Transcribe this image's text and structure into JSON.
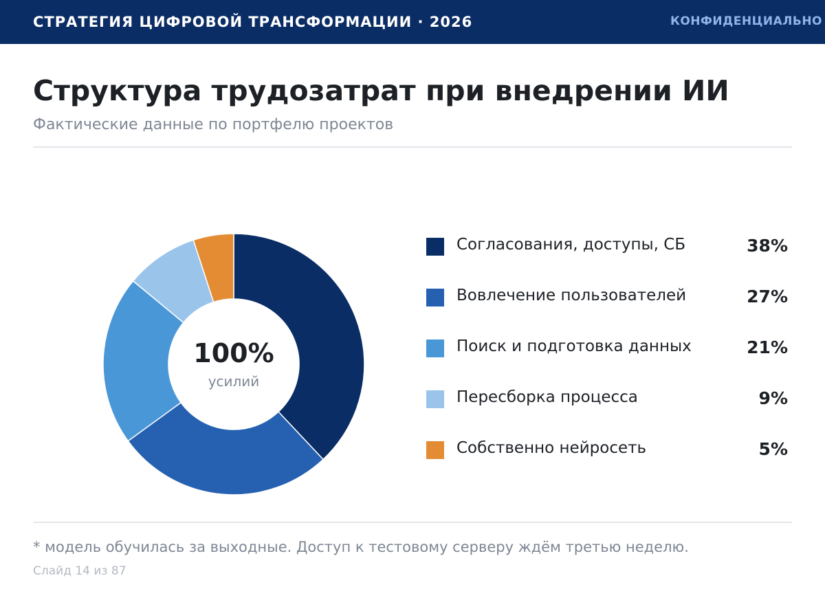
{
  "header": {
    "brand": "СТРАТЕГИЯ ЦИФРОВОЙ ТРАНСФОРМАЦИИ · 2026",
    "confidential": "КОНФИДЕНЦИАЛЬНО"
  },
  "slide": {
    "title": "Структура трудозатрат при внедрении ИИ",
    "subtitle": "Фактические данные по портфелю проектов",
    "footnote": "* модель обучилась за выходные. Доступ к тестовому серверу ждём третью неделю.",
    "slide_number": "Слайд 14 из 87"
  },
  "colors": {
    "header_bg": "#0b2d65",
    "accent_light": "#8fb5ea"
  },
  "chart_data": {
    "type": "pie",
    "variant": "donut",
    "center_value": "100%",
    "center_label": "усилий",
    "legend_position": "right",
    "slices": [
      {
        "label": "Согласования, доступы, СБ",
        "value": 38,
        "display": "38%",
        "color": "#0b2d65"
      },
      {
        "label": "Вовлечение пользователей",
        "value": 27,
        "display": "27%",
        "color": "#2661b1"
      },
      {
        "label": "Поиск и подготовка данных",
        "value": 21,
        "display": "21%",
        "color": "#4a97d8"
      },
      {
        "label": "Пересборка процесса",
        "value": 9,
        "display": "9%",
        "color": "#9ac4ea"
      },
      {
        "label": "Собственно нейросеть",
        "value": 5,
        "display": "5%",
        "color": "#e48c33"
      }
    ]
  }
}
